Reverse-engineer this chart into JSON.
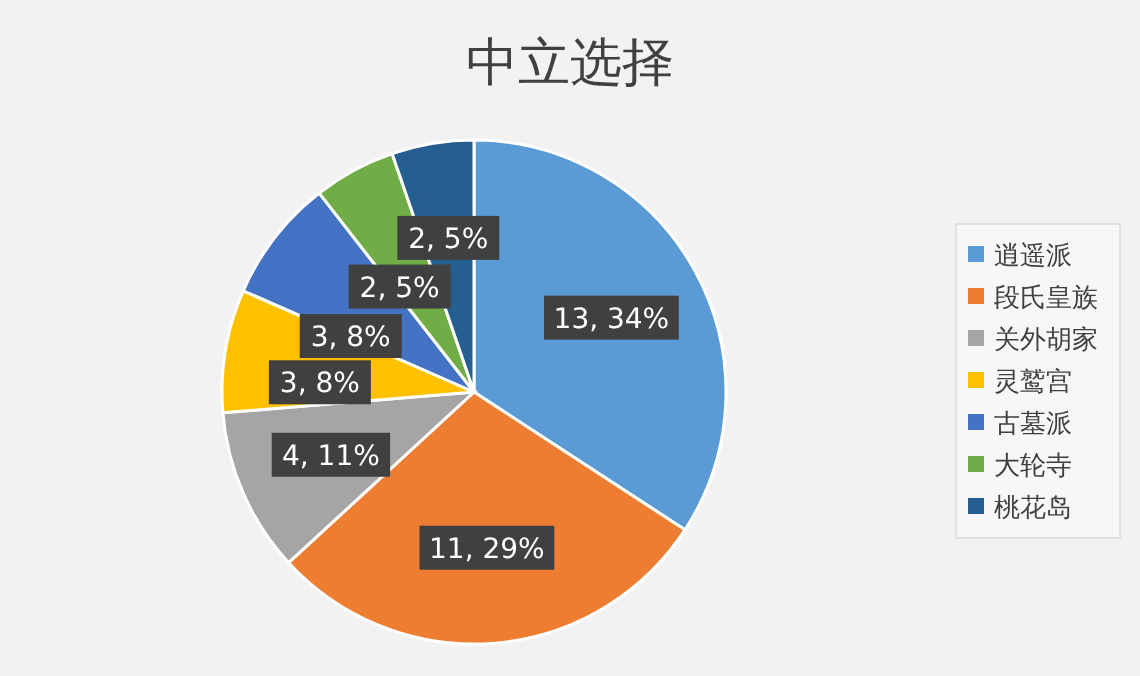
{
  "chart_data": {
    "type": "pie",
    "title": "中立选择",
    "categories": [
      "逍遥派",
      "段氏皇族",
      "关外胡家",
      "灵鹫宫",
      "古墓派",
      "大轮寺",
      "桃花岛"
    ],
    "values": [
      13,
      11,
      4,
      3,
      3,
      2,
      2
    ],
    "colors": [
      "#5b9bd5",
      "#ed7d31",
      "#a5a5a5",
      "#ffc000",
      "#4472c4",
      "#70ad47",
      "#255e91"
    ],
    "value_labels": [
      "13, 34%",
      "11, 29%",
      "4, 11%",
      "3, 8%",
      "3, 8%",
      "2, 5%",
      "2, 5%"
    ],
    "legend": "right"
  }
}
